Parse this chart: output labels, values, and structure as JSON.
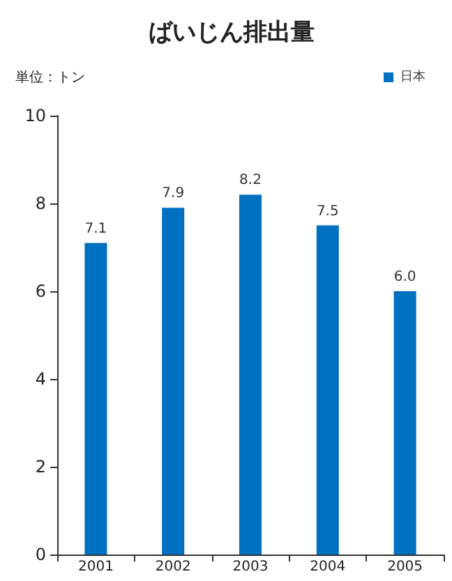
{
  "chart_data": {
    "type": "bar",
    "title": "ばいじん排出量",
    "ylabel": "単位：トン",
    "categories": [
      "2001",
      "2002",
      "2003",
      "2004",
      "2005"
    ],
    "series": [
      {
        "name": "日本",
        "color": "#0070c0",
        "values": [
          7.1,
          7.9,
          8.2,
          7.5,
          6.0
        ]
      }
    ],
    "value_labels": [
      "7.1",
      "7.9",
      "8.2",
      "7.5",
      "6.0"
    ],
    "ylim": [
      0,
      10
    ],
    "yticks": [
      0,
      2,
      4,
      6,
      8,
      10
    ],
    "grid": false,
    "legend": "top right"
  }
}
